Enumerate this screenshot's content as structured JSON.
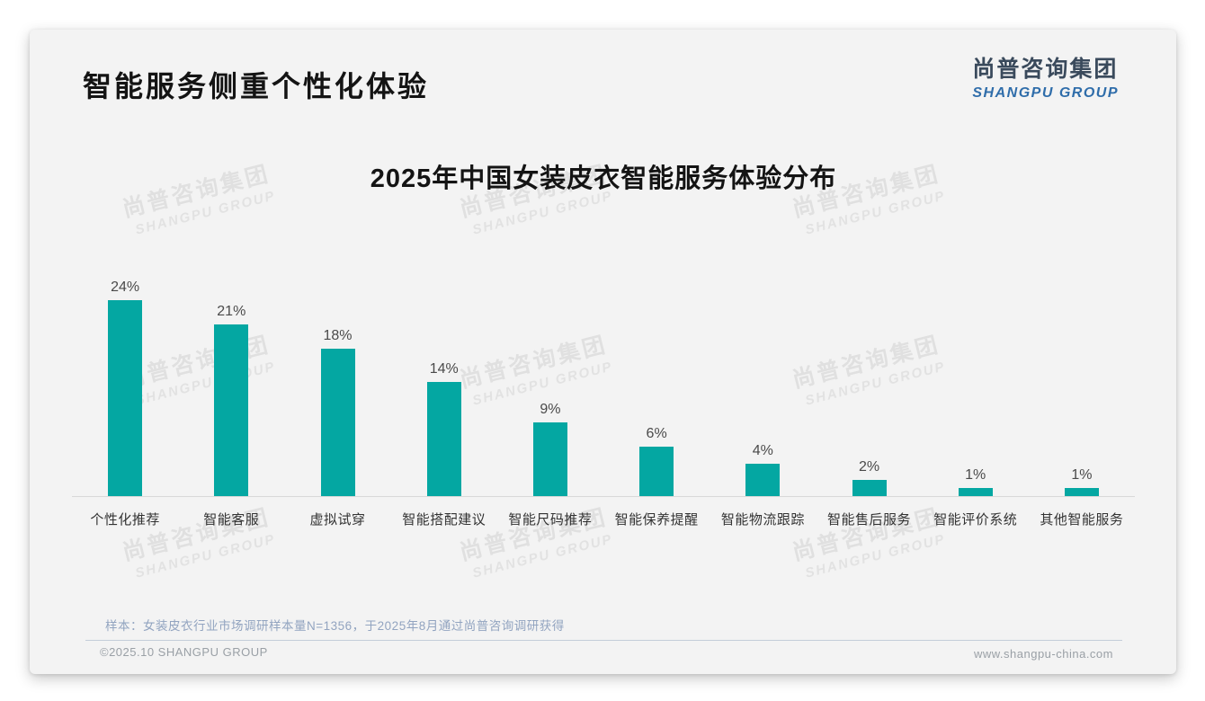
{
  "slide": {
    "title": "智能服务侧重个性化体验",
    "logo": {
      "cn": "尚普咨询集团",
      "en": "SHANGPU GROUP",
      "cn_color": "#3a4a5c",
      "en_color": "#2f6daa"
    },
    "watermark": {
      "line1": "尚普咨询集团",
      "line2": "SHANGPU GROUP"
    },
    "footer": {
      "sample_note": "样本：女装皮衣行业市场调研样本量N=1356，于2025年8月通过尚普咨询调研获得",
      "copyright": "©2025.10 SHANGPU GROUP",
      "website": "www.shangpu-china.com"
    }
  },
  "chart_data": {
    "type": "bar",
    "title": "2025年中国女装皮衣智能服务体验分布",
    "categories": [
      "个性化推荐",
      "智能客服",
      "虚拟试穿",
      "智能搭配建议",
      "智能尺码推荐",
      "智能保养提醒",
      "智能物流跟踪",
      "智能售后服务",
      "智能评价系统",
      "其他智能服务"
    ],
    "values": [
      24,
      21,
      18,
      14,
      9,
      6,
      4,
      2,
      1,
      1
    ],
    "value_suffix": "%",
    "bar_color": "#04a7a2",
    "value_label_color": "#4a4a4a",
    "axis_label_color": "#333333",
    "axis_line_color": "#d8d8d8",
    "xlabel": "",
    "ylabel": "",
    "ylim": [
      0,
      26
    ],
    "grid": false,
    "legend": false,
    "value_labels_position": "above"
  }
}
